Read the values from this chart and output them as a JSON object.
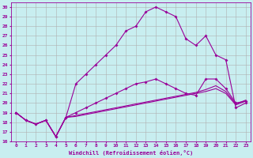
{
  "background_color": "#c8eef0",
  "grid_color": "#b0b0b0",
  "line_color": "#990099",
  "xlabel": "Windchill (Refroidissement éolien,°C)",
  "xlim": [
    -0.5,
    23.5
  ],
  "ylim": [
    16,
    30.5
  ],
  "yticks": [
    16,
    17,
    18,
    19,
    20,
    21,
    22,
    23,
    24,
    25,
    26,
    27,
    28,
    29,
    30
  ],
  "xticks": [
    0,
    1,
    2,
    3,
    4,
    5,
    6,
    7,
    8,
    9,
    10,
    11,
    12,
    13,
    14,
    15,
    16,
    17,
    18,
    19,
    20,
    21,
    22,
    23
  ],
  "curve1_x": [
    0,
    1,
    2,
    3,
    4,
    5,
    6,
    7,
    8,
    9,
    10,
    11,
    12,
    13,
    14,
    15,
    16,
    17,
    18,
    19,
    20,
    21,
    22,
    23
  ],
  "curve1_y": [
    19,
    18.2,
    17.8,
    18.2,
    16.5,
    18.5,
    22,
    23,
    24,
    25,
    26,
    27.5,
    28,
    29.5,
    30,
    29.5,
    29,
    26.7,
    26,
    27,
    25,
    24.5,
    19.5,
    20
  ],
  "curve2_x": [
    0,
    1,
    2,
    3,
    4,
    5,
    6,
    7,
    8,
    9,
    10,
    11,
    12,
    13,
    14,
    15,
    16,
    17,
    18,
    19,
    20,
    21,
    22,
    23
  ],
  "curve2_y": [
    19,
    18.2,
    17.8,
    18.2,
    16.5,
    18.5,
    19.0,
    19.5,
    20.0,
    20.5,
    21.0,
    21.5,
    22.0,
    22.2,
    22.5,
    22.0,
    21.5,
    21.0,
    20.8,
    22.5,
    22.5,
    21.5,
    20.0,
    20.2
  ],
  "curve3_x": [
    0,
    1,
    2,
    3,
    4,
    5,
    6,
    7,
    8,
    9,
    10,
    11,
    12,
    13,
    14,
    15,
    16,
    17,
    18,
    19,
    20,
    21,
    22,
    23
  ],
  "curve3_y": [
    19,
    18.2,
    17.8,
    18.2,
    16.5,
    18.5,
    18.6,
    18.8,
    19.0,
    19.2,
    19.4,
    19.6,
    19.8,
    20.0,
    20.2,
    20.4,
    20.6,
    20.8,
    21.0,
    21.2,
    21.5,
    21.0,
    19.8,
    20.2
  ],
  "curve4_x": [
    0,
    1,
    2,
    3,
    4,
    5,
    6,
    7,
    8,
    9,
    10,
    11,
    12,
    13,
    14,
    15,
    16,
    17,
    18,
    19,
    20,
    21,
    22,
    23
  ],
  "curve4_y": [
    19,
    18.2,
    17.8,
    18.2,
    16.5,
    18.5,
    18.7,
    18.9,
    19.1,
    19.3,
    19.5,
    19.7,
    19.9,
    20.1,
    20.3,
    20.5,
    20.7,
    20.9,
    21.1,
    21.4,
    21.8,
    21.2,
    19.9,
    20.3
  ]
}
